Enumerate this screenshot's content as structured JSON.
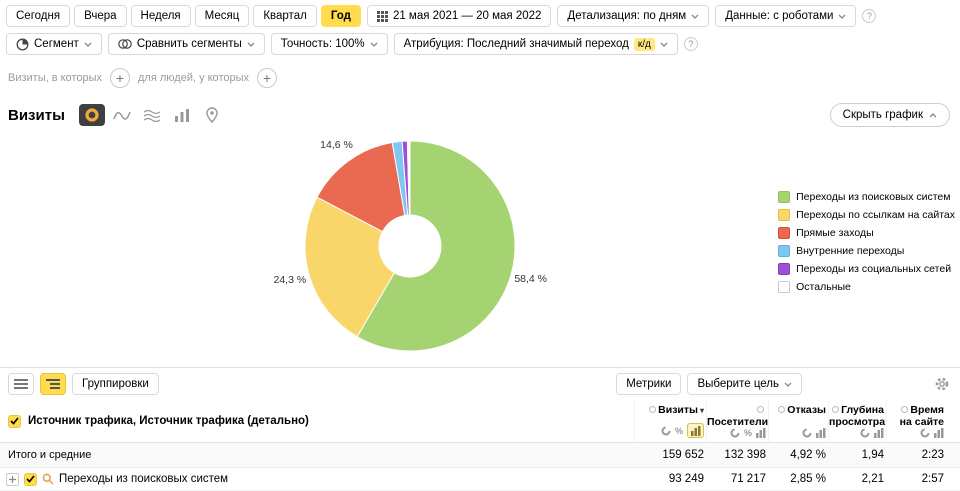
{
  "period_toolbar": {
    "buttons": [
      {
        "label": "Сегодня",
        "selected": false
      },
      {
        "label": "Вчера",
        "selected": false
      },
      {
        "label": "Неделя",
        "selected": false
      },
      {
        "label": "Месяц",
        "selected": false
      },
      {
        "label": "Квартал",
        "selected": false
      },
      {
        "label": "Год",
        "selected": true
      }
    ],
    "date_range": "21 мая 2021 — 20 мая 2022",
    "detalization": "Детализация: по дням",
    "data_mode": "Данные: с роботами"
  },
  "segment_toolbar": {
    "segment_label": "Сегмент",
    "compare_label": "Сравнить сегменты",
    "precision_label": "Точность: 100%",
    "attribution_label": "Атрибуция: Последний значимый переход",
    "attribution_tag": "к/д"
  },
  "filter_bar": {
    "visits_condition_label": "Визиты, в которых",
    "people_condition_label": "для людей, у которых"
  },
  "chart_header": {
    "title": "Визиты",
    "hide_chart_label": "Скрыть график"
  },
  "chart_data": {
    "type": "pie",
    "donut": true,
    "legend_position": "right",
    "title": "Визиты",
    "slices": [
      {
        "label": "Переходы из поисковых систем",
        "value": 58.4,
        "display": "58,4 %",
        "color": "#a6d371",
        "border": "#8fc255"
      },
      {
        "label": "Переходы по ссылкам на сайтах",
        "value": 24.3,
        "display": "24,3 %",
        "color": "#f8d66a",
        "border": "#e5bf47"
      },
      {
        "label": "Прямые заходы",
        "value": 14.6,
        "display": "14,6 %",
        "color": "#e96a50",
        "border": "#d65138"
      },
      {
        "label": "Внутренние переходы",
        "value": 1.5,
        "color": "#7fc7f1",
        "border": "#5db2e3"
      },
      {
        "label": "Переходы из социальных сетей",
        "value": 0.8,
        "color": "#9a50d8",
        "border": "#8340bf"
      },
      {
        "label": "Остальные",
        "value": 0.4,
        "color": "#ffffff",
        "border": "#c9c9c9"
      }
    ]
  },
  "table": {
    "toolbar": {
      "groupings_label": "Группировки",
      "metrics_label": "Метрики",
      "goal_label": "Выберите цель"
    },
    "dimension_header": "Источник трафика, Источник трафика (детально)",
    "columns": [
      {
        "label": "Визиты",
        "sorted": true
      },
      {
        "label": "Посетители",
        "sorted": false
      },
      {
        "label": "Отказы",
        "sorted": false
      },
      {
        "label": "Глубина просмотра",
        "sorted": false
      },
      {
        "label": "Время на сайте",
        "sorted": false
      }
    ],
    "totals_label": "Итого и средние",
    "totals": [
      "159 652",
      "132 398",
      "4,92 %",
      "1,94",
      "2:23"
    ],
    "rows": [
      {
        "label": "Переходы из поисковых систем",
        "values": [
          "93 249",
          "71 217",
          "2,85 %",
          "2,21",
          "2:57"
        ]
      }
    ]
  }
}
